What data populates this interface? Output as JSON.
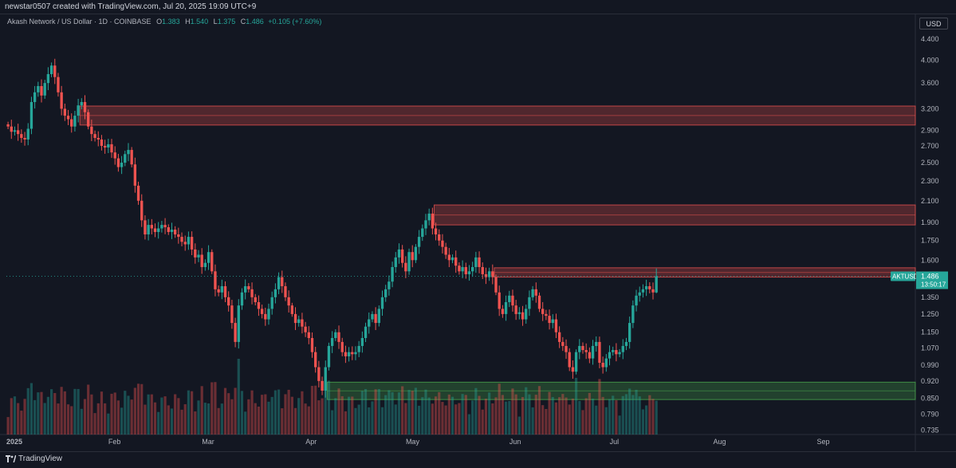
{
  "header": {
    "attribution": "newstar0507 created with TradingView.com, Jul 20, 2025 19:09 UTC+9"
  },
  "legend": {
    "title": "Akash Network / US Dollar · 1D · COINBASE",
    "o_label": "O",
    "o_value": "1.383",
    "h_label": "H",
    "h_value": "1.540",
    "l_label": "L",
    "l_value": "1.375",
    "c_label": "C",
    "c_value": "1.486",
    "change": "+0.105 (+7.60%)"
  },
  "price_axis": {
    "currency": "USD"
  },
  "last_price": {
    "symbol": "AKTUSD",
    "value": "1.486",
    "countdown": "13:50:17"
  },
  "footer": {
    "brand": "TradingView"
  },
  "colors": {
    "up": "#26a69a",
    "down": "#ef5350",
    "bg": "#131722",
    "supply_zone": "#ef5350",
    "demand_zone": "#4caf50"
  },
  "chart_data": {
    "type": "candlestick",
    "symbol": "AKTUSD",
    "interval": "1D",
    "exchange": "COINBASE",
    "y_scale": "log",
    "ylim": [
      0.72,
      4.55
    ],
    "xlim": [
      "2025-01-01",
      "2025-09-30"
    ],
    "y_ticks": [
      "4.400",
      "4.000",
      "3.600",
      "3.200",
      "2.900",
      "2.700",
      "2.500",
      "2.300",
      "2.100",
      "1.900",
      "1.750",
      "1.600",
      "1.350",
      "1.250",
      "1.150",
      "1.070",
      "0.990",
      "0.920",
      "0.850",
      "0.790",
      "0.735"
    ],
    "x_ticks": [
      {
        "label": "2025",
        "date": "2025-01-01"
      },
      {
        "label": "Feb",
        "date": "2025-02-01"
      },
      {
        "label": "Mar",
        "date": "2025-03-01"
      },
      {
        "label": "Apr",
        "date": "2025-04-01"
      },
      {
        "label": "May",
        "date": "2025-05-01"
      },
      {
        "label": "Jun",
        "date": "2025-06-01"
      },
      {
        "label": "Jul",
        "date": "2025-07-01"
      },
      {
        "label": "Aug",
        "date": "2025-08-01"
      },
      {
        "label": "Sep",
        "date": "2025-09-01"
      }
    ],
    "zones": [
      {
        "type": "supply",
        "start": "2025-01-23",
        "y1": 2.97,
        "y2": 3.24
      },
      {
        "type": "supply",
        "start": "2025-05-09",
        "y1": 1.88,
        "y2": 2.06
      },
      {
        "type": "supply",
        "start": "2025-05-27",
        "y1": 1.48,
        "y2": 1.545
      },
      {
        "type": "demand",
        "start": "2025-04-07",
        "y1": 0.845,
        "y2": 0.915
      }
    ],
    "start_date": "2025-01-01",
    "closes": [
      2.95,
      2.88,
      2.9,
      2.85,
      2.8,
      2.78,
      2.92,
      3.3,
      3.45,
      3.55,
      3.4,
      3.6,
      3.75,
      3.9,
      3.7,
      3.45,
      3.2,
      3.1,
      3.05,
      2.95,
      3.1,
      3.25,
      3.3,
      3.15,
      2.95,
      2.85,
      2.8,
      2.78,
      2.7,
      2.68,
      2.72,
      2.62,
      2.55,
      2.45,
      2.5,
      2.6,
      2.65,
      2.48,
      2.25,
      2.1,
      1.92,
      1.8,
      1.88,
      1.85,
      1.82,
      1.85,
      1.88,
      1.86,
      1.82,
      1.84,
      1.8,
      1.78,
      1.74,
      1.72,
      1.78,
      1.68,
      1.62,
      1.64,
      1.55,
      1.58,
      1.66,
      1.52,
      1.4,
      1.38,
      1.42,
      1.35,
      1.3,
      1.2,
      1.1,
      1.3,
      1.38,
      1.42,
      1.4,
      1.35,
      1.32,
      1.28,
      1.25,
      1.22,
      1.28,
      1.35,
      1.4,
      1.48,
      1.42,
      1.35,
      1.3,
      1.25,
      1.2,
      1.22,
      1.18,
      1.15,
      1.12,
      1.05,
      0.98,
      0.92,
      0.88,
      0.98,
      1.08,
      1.12,
      1.15,
      1.1,
      1.05,
      1.03,
      1.05,
      1.04,
      1.05,
      1.08,
      1.12,
      1.18,
      1.22,
      1.25,
      1.2,
      1.28,
      1.35,
      1.4,
      1.45,
      1.55,
      1.62,
      1.68,
      1.58,
      1.52,
      1.66,
      1.6,
      1.7,
      1.78,
      1.85,
      1.92,
      1.98,
      1.85,
      1.8,
      1.75,
      1.7,
      1.64,
      1.6,
      1.62,
      1.56,
      1.52,
      1.55,
      1.5,
      1.52,
      1.55,
      1.62,
      1.55,
      1.5,
      1.48,
      1.52,
      1.48,
      1.38,
      1.28,
      1.25,
      1.32,
      1.36,
      1.3,
      1.25,
      1.26,
      1.22,
      1.28,
      1.35,
      1.4,
      1.36,
      1.28,
      1.25,
      1.24,
      1.2,
      1.22,
      1.15,
      1.1,
      1.08,
      1.05,
      0.98,
      0.96,
      1.05,
      1.08,
      1.06,
      1.05,
      1.02,
      1.08,
      1.1,
      1.0,
      0.98,
      1.02,
      1.05,
      1.06,
      1.04,
      1.05,
      1.08,
      1.1,
      1.2,
      1.3,
      1.36,
      1.38,
      1.4,
      1.42,
      1.4,
      1.38,
      1.486
    ]
  }
}
